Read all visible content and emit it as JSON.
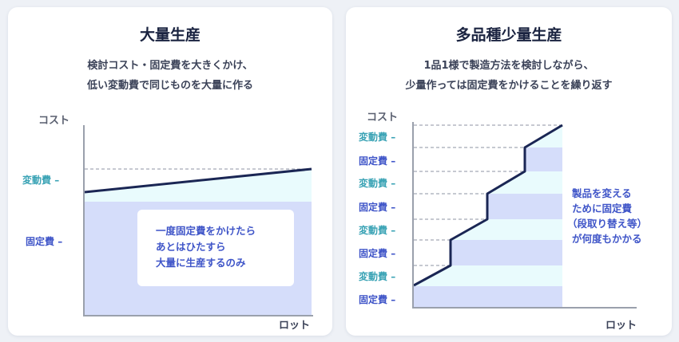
{
  "left": {
    "title": "大量生産",
    "description": [
      "検討コスト・固定費を大きくかけ、",
      "低い変動費で同じものを大量に作る"
    ],
    "y_axis_label": "コスト",
    "x_axis_label": "ロット",
    "ticks": [
      {
        "label": "変動費",
        "kind": "variable"
      },
      {
        "label": "固定費",
        "kind": "fixed"
      }
    ],
    "callout": [
      "一度固定費をかけたら",
      "あとはひたすら",
      "大量に生産するのみ"
    ]
  },
  "right": {
    "title": "多品種少量生産",
    "description": [
      "1品1様で製造方法を検討しながら、",
      "少量作っては固定費をかけることを繰り返す"
    ],
    "y_axis_label": "コスト",
    "x_axis_label": "ロット",
    "ticks": [
      {
        "label": "変動費",
        "kind": "variable"
      },
      {
        "label": "固定費",
        "kind": "fixed"
      },
      {
        "label": "変動費",
        "kind": "variable"
      },
      {
        "label": "固定費",
        "kind": "fixed"
      },
      {
        "label": "変動費",
        "kind": "variable"
      },
      {
        "label": "固定費",
        "kind": "fixed"
      },
      {
        "label": "変動費",
        "kind": "variable"
      },
      {
        "label": "固定費",
        "kind": "fixed"
      }
    ],
    "callout": [
      "製品を変える",
      "ために固定費",
      "（段取り替え等）",
      "が何度もかかる"
    ]
  },
  "colors": {
    "fixed_fill": "#d5ddfa",
    "variable_fill": "#e9fbfd",
    "cost_line": "#1a2654",
    "axis": "#9aa0ac",
    "variable_text": "#3aa3b5",
    "fixed_text": "#3f55c8"
  }
}
